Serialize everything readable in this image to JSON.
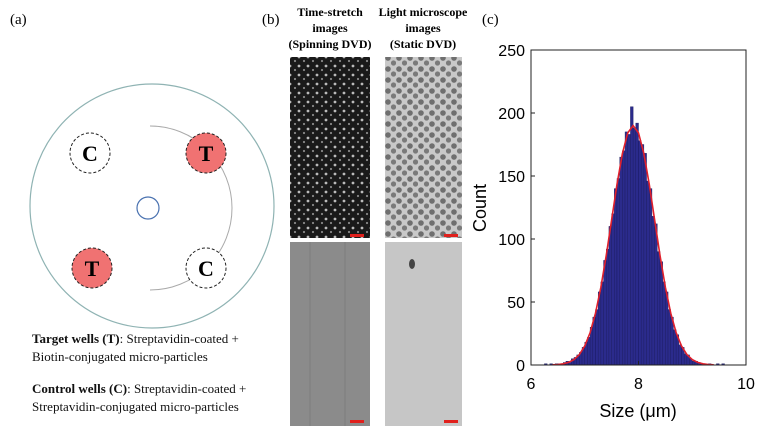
{
  "panel_a": {
    "label": "(a)",
    "wells": [
      {
        "label": "C"
      },
      {
        "label": "T"
      },
      {
        "label": "T"
      },
      {
        "label": "C"
      }
    ],
    "legend": [
      {
        "term": "Target wells (T)",
        "text": ": Streptavidin-coated + Biotin-conjugated micro-particles"
      },
      {
        "term": "Control wells (C)",
        "text": ": Streptavidin-coated + Streptavidin-conjugated micro-particles"
      }
    ]
  },
  "panel_b": {
    "label": "(b)",
    "columns": [
      {
        "lines": [
          "Time-stretch",
          "images",
          "(Spinning DVD)"
        ]
      },
      {
        "lines": [
          "Light microscope",
          "images",
          "(Static DVD)"
        ]
      }
    ]
  },
  "chart_data": {
    "type": "histogram",
    "panel_label": "(c)",
    "color": "#2b2b8c",
    "x_label": "Size (μm)",
    "y_label": "Count",
    "bins": [
      6.2,
      6.25,
      6.3,
      6.35,
      6.4,
      6.45,
      6.5,
      6.55,
      6.6,
      6.65,
      6.7,
      6.75,
      6.8,
      6.85,
      6.9,
      6.95,
      7.0,
      7.05,
      7.1,
      7.15,
      7.2,
      7.25,
      7.3,
      7.35,
      7.4,
      7.45,
      7.5,
      7.55,
      7.6,
      7.65,
      7.7,
      7.75,
      7.8,
      7.85,
      7.9,
      7.95,
      8.0,
      8.05,
      8.1,
      8.15,
      8.2,
      8.25,
      8.3,
      8.35,
      8.4,
      8.45,
      8.5,
      8.55,
      8.6,
      8.65,
      8.7,
      8.75,
      8.8,
      8.85,
      8.9,
      8.95,
      9.0,
      9.05,
      9.1,
      9.15,
      9.2,
      9.25,
      9.3,
      9.35,
      9.4,
      9.45,
      9.5,
      9.55,
      9.6
    ],
    "counts": [
      0,
      1,
      0,
      1,
      0,
      1,
      1,
      1,
      2,
      3,
      2,
      5,
      6,
      8,
      10,
      14,
      18,
      22,
      30,
      38,
      44,
      58,
      66,
      83,
      92,
      110,
      120,
      140,
      148,
      165,
      170,
      185,
      183,
      205,
      188,
      192,
      178,
      175,
      168,
      146,
      140,
      118,
      112,
      90,
      82,
      66,
      58,
      44,
      38,
      28,
      24,
      16,
      14,
      9,
      8,
      5,
      3,
      3,
      2,
      1,
      1,
      0,
      1,
      0,
      0,
      1,
      0,
      1
    ],
    "fit": {
      "color": "#e0202c",
      "x": [
        6.4,
        6.5,
        6.6,
        6.7,
        6.8,
        6.9,
        7.0,
        7.1,
        7.2,
        7.3,
        7.4,
        7.5,
        7.6,
        7.7,
        7.8,
        7.9,
        8.0,
        8.1,
        8.2,
        8.3,
        8.4,
        8.5,
        8.6,
        8.7,
        8.8,
        8.9,
        9.0,
        9.1,
        9.2,
        9.3,
        9.4
      ],
      "values": [
        0.2,
        0.4,
        1.0,
        2.1,
        4.3,
        8.3,
        15.1,
        25.7,
        41.1,
        61.7,
        87.0,
        115.2,
        143.4,
        167.7,
        184.2,
        190,
        184.2,
        167.7,
        143.4,
        115.2,
        87.0,
        61.7,
        41.1,
        25.7,
        15.1,
        8.3,
        4.3,
        2.1,
        1.0,
        0.4,
        0.2
      ]
    },
    "xlim": [
      6,
      10
    ],
    "xticks": [
      6,
      8,
      10
    ],
    "ylim": [
      0,
      250
    ],
    "yticks": [
      0,
      50,
      100,
      150,
      200,
      250
    ]
  }
}
